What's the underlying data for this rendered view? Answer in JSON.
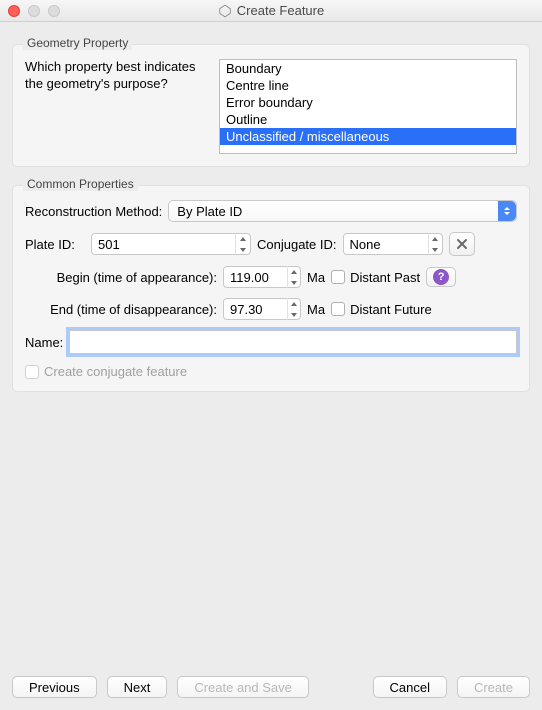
{
  "window": {
    "title": "Create Feature"
  },
  "geometry": {
    "legend": "Geometry Property",
    "question": "Which property best indicates the geometry's purpose?",
    "options": [
      "Boundary",
      "Centre line",
      "Error boundary",
      "Outline",
      "Unclassified / miscellaneous"
    ],
    "selected_index": 4
  },
  "common": {
    "legend": "Common Properties",
    "reconstruction_label": "Reconstruction Method:",
    "reconstruction_value": "By Plate ID",
    "plate_id_label": "Plate ID:",
    "plate_id_value": "501",
    "conjugate_id_label": "Conjugate ID:",
    "conjugate_id_value": "None",
    "begin_label": "Begin (time of appearance):",
    "begin_value": "119.00",
    "end_label": "End (time of disappearance):",
    "end_value": "97.30",
    "ma_unit": "Ma",
    "distant_past_label": "Distant Past",
    "distant_future_label": "Distant Future",
    "name_label": "Name:",
    "name_value": "",
    "create_conjugate_label": "Create conjugate feature"
  },
  "buttons": {
    "previous": "Previous",
    "next": "Next",
    "create_save": "Create and Save",
    "cancel": "Cancel",
    "create": "Create"
  },
  "colors": {
    "selection": "#2a6ff8",
    "window_bg": "#ececec",
    "group_bg": "#f5f5f5"
  }
}
